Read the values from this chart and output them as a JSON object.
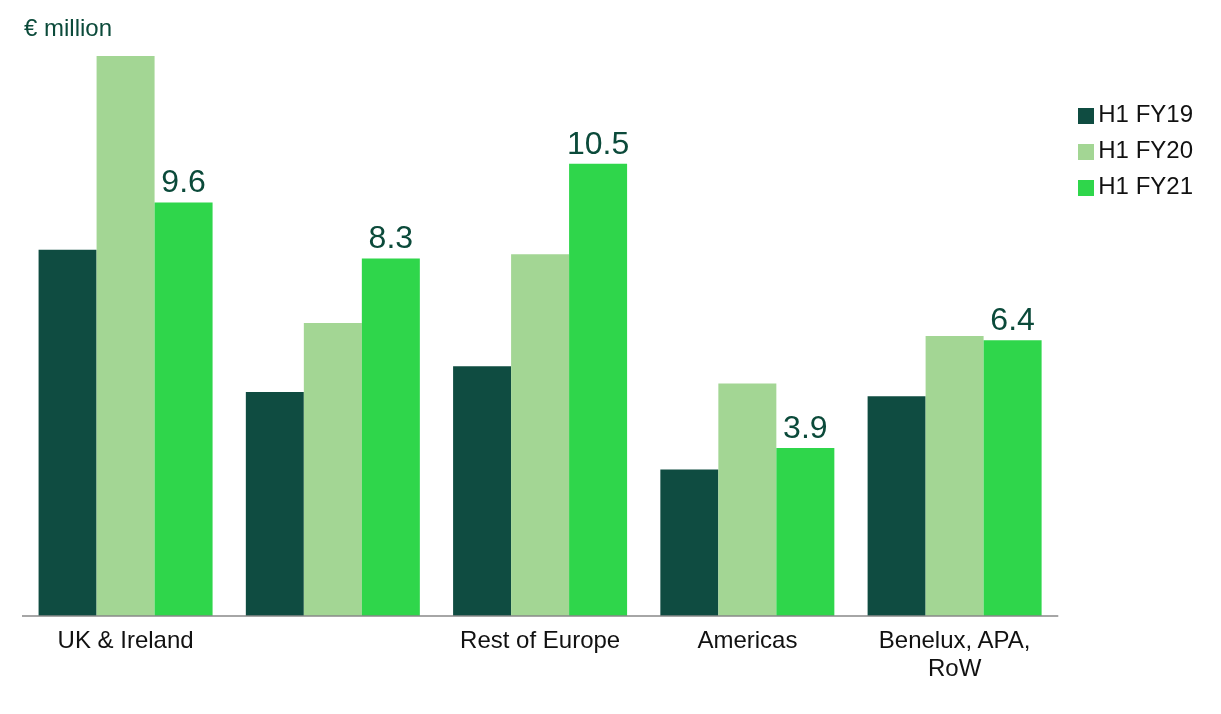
{
  "chart_data": {
    "type": "bar",
    "ylabel": "€ million",
    "categories": [
      "UK & Ireland",
      null,
      "Rest of Europe",
      "Americas",
      "Benelux, APA, RoW"
    ],
    "series": [
      {
        "name": "H1 FY19",
        "color": "#0f4c41",
        "values": [
          8.5,
          5.2,
          5.8,
          3.4,
          5.1
        ]
      },
      {
        "name": "H1 FY20",
        "color": "#a3d694",
        "values": [
          13.0,
          6.8,
          8.4,
          5.4,
          6.5
        ]
      },
      {
        "name": "H1 FY21",
        "color": "#2fd64b",
        "values": [
          9.6,
          8.3,
          10.5,
          3.9,
          6.4
        ],
        "value_labels": [
          "9.6",
          "8.3",
          "10.5",
          "3.9",
          "6.4"
        ]
      }
    ],
    "legend": "top right",
    "grid": false
  }
}
